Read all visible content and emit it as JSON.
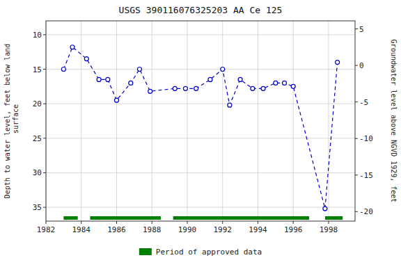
{
  "chart_data": {
    "type": "line",
    "title": "USGS 390116076325203 AA Ce 125",
    "ylabel": "Depth to water level, feet below land\n surface",
    "y2label": "Groundwater level above NGVD 1929, feet",
    "x": [
      1983.0,
      1983.5,
      1984.3,
      1985.0,
      1985.5,
      1986.0,
      1986.8,
      1987.3,
      1987.9,
      1989.3,
      1989.9,
      1990.5,
      1991.3,
      1992.0,
      1992.4,
      1993.0,
      1993.7,
      1994.3,
      1995.0,
      1995.5,
      1996.0,
      1997.8,
      1998.5
    ],
    "series": [
      {
        "type": "line",
        "color": "#0000cc",
        "marker": "circle",
        "line_style": "dashed",
        "values": [
          15.0,
          11.8,
          13.5,
          16.5,
          16.5,
          19.5,
          17.0,
          15.0,
          18.2,
          17.8,
          17.8,
          17.8,
          16.5,
          15.0,
          20.2,
          16.5,
          17.8,
          17.8,
          17.0,
          17.0,
          17.5,
          35.2,
          14.0
        ]
      }
    ],
    "periods": {
      "name": "Period of approved data",
      "color": "#008000",
      "ranges": [
        [
          1983.0,
          1983.8
        ],
        [
          1984.5,
          1988.5
        ],
        [
          1989.2,
          1996.9
        ],
        [
          1997.8,
          1998.8
        ]
      ]
    },
    "xlim": [
      1982,
      1999.5
    ],
    "xticks": [
      1982,
      1984,
      1986,
      1988,
      1990,
      1992,
      1994,
      1996,
      1998
    ],
    "ylim": [
      37,
      8
    ],
    "yticks": [
      10,
      15,
      20,
      25,
      30,
      35
    ],
    "y2lim": [
      -21.3,
      6.1
    ],
    "y2ticks": [
      5,
      0,
      -5,
      -10,
      -15,
      -20
    ],
    "grid": true
  }
}
